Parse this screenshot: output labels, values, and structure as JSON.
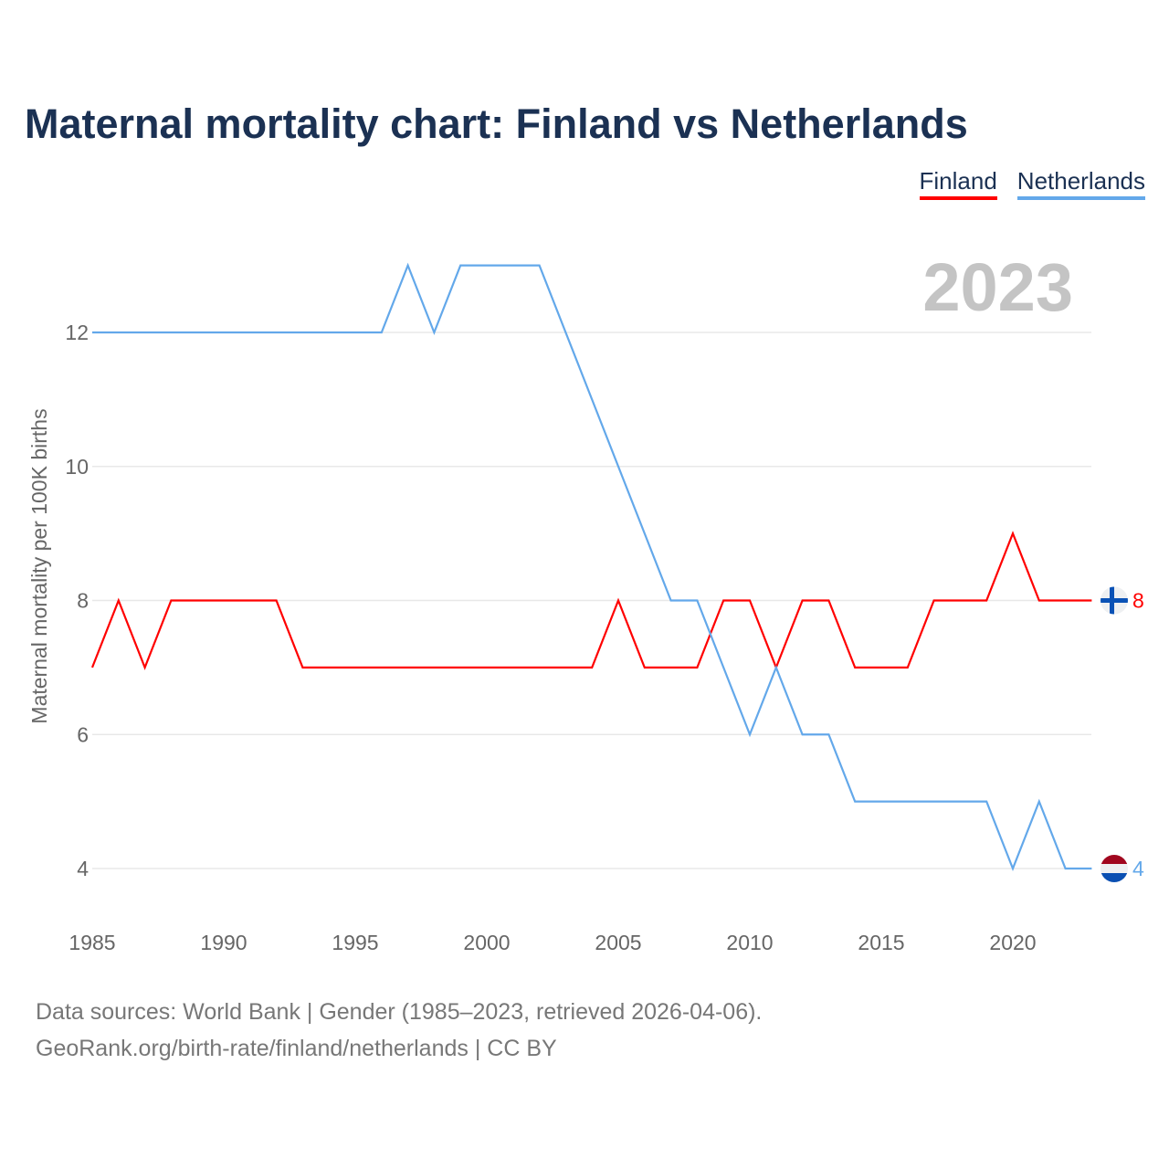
{
  "title": "Maternal mortality chart: Finland vs Netherlands",
  "legend": [
    "Finland",
    "Netherlands"
  ],
  "source_line1": "Data sources: World Bank | Gender (1985–2023, retrieved 2026-04-06).",
  "source_line2": "GeoRank.org/birth-rate/finland/netherlands | CC BY",
  "chart_data": {
    "type": "line",
    "title": "Maternal mortality chart: Finland vs Netherlands",
    "ylabel": "Maternal mortality per 100K births",
    "xlabel": "",
    "year_label": "2023",
    "xlim": [
      1985,
      2023
    ],
    "ylim": [
      3.3,
      13.5
    ],
    "yticks": [
      4,
      6,
      8,
      10,
      12
    ],
    "xticks": [
      1985,
      1990,
      1995,
      2000,
      2005,
      2010,
      2015,
      2020
    ],
    "grid": true,
    "legend_position": "top-right",
    "x": [
      1985,
      1986,
      1987,
      1988,
      1989,
      1990,
      1991,
      1992,
      1993,
      1994,
      1995,
      1996,
      1997,
      1998,
      1999,
      2000,
      2001,
      2002,
      2003,
      2004,
      2005,
      2006,
      2007,
      2008,
      2009,
      2010,
      2011,
      2012,
      2013,
      2014,
      2015,
      2016,
      2017,
      2018,
      2019,
      2020,
      2021,
      2022,
      2023
    ],
    "series": [
      {
        "name": "Finland",
        "color": "#ff0000",
        "end_label": "8",
        "values": [
          7,
          8,
          7,
          8,
          8,
          8,
          8,
          8,
          7,
          7,
          7,
          7,
          7,
          7,
          7,
          7,
          7,
          7,
          7,
          7,
          8,
          7,
          7,
          7,
          8,
          8,
          7,
          8,
          8,
          7,
          7,
          7,
          8,
          8,
          8,
          9,
          8,
          8,
          8
        ]
      },
      {
        "name": "Netherlands",
        "color": "#63a8ea",
        "end_label": "4",
        "values": [
          12,
          12,
          12,
          12,
          12,
          12,
          12,
          12,
          12,
          12,
          12,
          12,
          13,
          12,
          13,
          13,
          13,
          13,
          12,
          11,
          10,
          9,
          8,
          8,
          7,
          6,
          7,
          6,
          6,
          5,
          5,
          5,
          5,
          5,
          5,
          4,
          5,
          4,
          4
        ]
      }
    ]
  }
}
